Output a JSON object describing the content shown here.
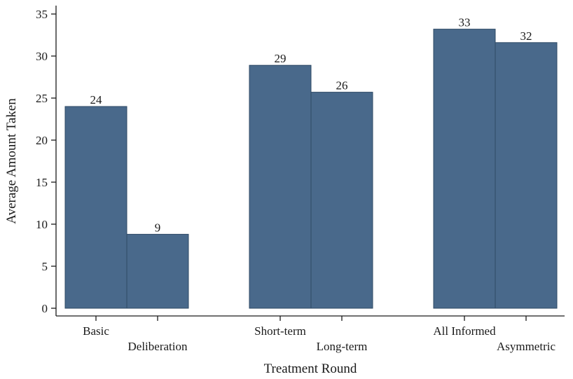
{
  "chart_data": {
    "type": "bar",
    "xlabel": "Treatment Round",
    "ylabel": "Average Amount Taken",
    "ylim": [
      0,
      35
    ],
    "yticks": [
      0,
      5,
      10,
      15,
      20,
      25,
      30,
      35
    ],
    "grid": false,
    "groups": [
      {
        "bars": [
          {
            "label": "Basic",
            "value": 24,
            "data_label": "24"
          },
          {
            "label": "Deliberation",
            "value": 8.8,
            "data_label": "9"
          }
        ]
      },
      {
        "bars": [
          {
            "label": "Short-term",
            "value": 28.9,
            "data_label": "29"
          },
          {
            "label": "Long-term",
            "value": 25.7,
            "data_label": "26"
          }
        ]
      },
      {
        "bars": [
          {
            "label": "All Informed",
            "value": 33.2,
            "data_label": "33"
          },
          {
            "label": "Asymmetric",
            "value": 31.6,
            "data_label": "32"
          }
        ]
      }
    ],
    "colors": {
      "bar": "#49698b",
      "bar_edge": "#2f4a66",
      "axis": "#1a1a1a"
    }
  }
}
